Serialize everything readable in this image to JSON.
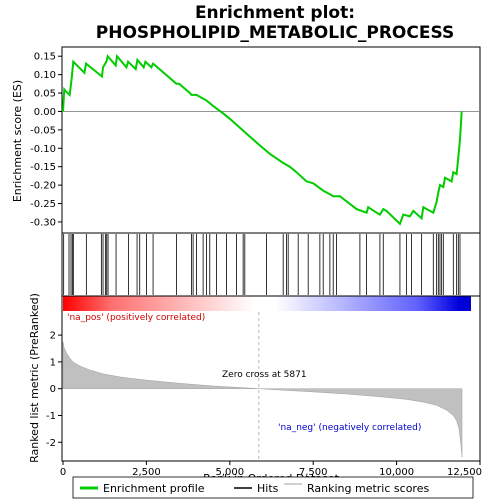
{
  "chart_data": {
    "type": "line",
    "title_line1": "Enrichment plot:",
    "title_line2": "PHOSPHOLIPID_METABOLIC_PROCESS",
    "top_panel": {
      "ylabel": "Enrichment score (ES)",
      "ylim": [
        -0.33,
        0.175
      ],
      "yticks": [
        0.15,
        0.1,
        0.05,
        0.0,
        -0.05,
        -0.1,
        -0.15,
        -0.2,
        -0.25,
        -0.3
      ],
      "ytick_labels": [
        "0.15",
        "0.10",
        "0.05",
        "0.00",
        "-0.05",
        "-0.10",
        "-0.15",
        "-0.20",
        "-0.25",
        "-0.30"
      ],
      "series": [
        {
          "name": "Enrichment profile",
          "color": "#00cc00",
          "x": [
            0,
            40,
            80,
            200,
            260,
            310,
            640,
            690,
            1170,
            1200,
            1300,
            1340,
            1580,
            1620,
            1900,
            1950,
            2180,
            2230,
            2420,
            2470,
            2650,
            2700,
            3400,
            3480,
            3800,
            3850,
            4000,
            4200,
            4300,
            4500,
            4800,
            5000,
            5500,
            5871,
            6200,
            6600,
            6800,
            7000,
            7300,
            7500,
            7800,
            8000,
            8100,
            8300,
            8800,
            9100,
            9150,
            9400,
            9500,
            9600,
            9700,
            10100,
            10200,
            10400,
            10500,
            10750,
            10800,
            11100,
            11150,
            11200,
            11250,
            11300,
            11400,
            11450,
            11650,
            11700,
            11800,
            11850,
            11900,
            11950
          ],
          "y": [
            0.0,
            0.06,
            0.055,
            0.045,
            0.09,
            0.135,
            0.105,
            0.13,
            0.095,
            0.12,
            0.135,
            0.15,
            0.125,
            0.15,
            0.12,
            0.135,
            0.115,
            0.14,
            0.12,
            0.135,
            0.12,
            0.13,
            0.075,
            0.075,
            0.05,
            0.045,
            0.045,
            0.035,
            0.03,
            0.015,
            -0.005,
            -0.02,
            -0.06,
            -0.09,
            -0.115,
            -0.14,
            -0.15,
            -0.165,
            -0.19,
            -0.195,
            -0.215,
            -0.225,
            -0.23,
            -0.23,
            -0.265,
            -0.275,
            -0.26,
            -0.275,
            -0.28,
            -0.265,
            -0.27,
            -0.305,
            -0.28,
            -0.285,
            -0.27,
            -0.29,
            -0.26,
            -0.275,
            -0.26,
            -0.245,
            -0.22,
            -0.2,
            -0.205,
            -0.18,
            -0.19,
            -0.165,
            -0.17,
            -0.125,
            -0.075,
            0.0
          ]
        }
      ]
    },
    "hits_x": [
      20,
      180,
      240,
      280,
      310,
      700,
      1150,
      1200,
      1270,
      1310,
      1350,
      1590,
      1960,
      2220,
      2300,
      2500,
      2700,
      3400,
      3850,
      3900,
      4000,
      4200,
      4300,
      4400,
      4600,
      4900,
      5200,
      5400,
      5450,
      6100,
      6600,
      6700,
      6750,
      7050,
      7350,
      7700,
      7800,
      8000,
      8100,
      8200,
      8900,
      9100,
      9500,
      9600,
      10100,
      10300,
      10450,
      10750,
      11100,
      11200,
      11250,
      11300,
      11350,
      11400,
      11700,
      11800,
      11850,
      11900
    ],
    "bottom_panel": {
      "ylabel": "Ranked list metric (PreRanked)",
      "ylim": [
        -2.7,
        2.9
      ],
      "yticks": [
        2,
        1,
        0,
        -1,
        -2
      ],
      "ytick_labels": [
        "2",
        "1",
        "0",
        "-1",
        "-2"
      ],
      "metric_x": [
        0,
        30,
        100,
        200,
        300,
        500,
        800,
        1200,
        1800,
        2500,
        3500,
        4500,
        5500,
        5871,
        6500,
        7500,
        8500,
        9500,
        10300,
        10800,
        11200,
        11500,
        11700,
        11800,
        11870,
        11920,
        11960
      ],
      "metric_y": [
        1.75,
        1.55,
        1.35,
        1.15,
        1.0,
        0.85,
        0.7,
        0.55,
        0.42,
        0.32,
        0.2,
        0.1,
        0.03,
        0.0,
        -0.05,
        -0.12,
        -0.2,
        -0.3,
        -0.4,
        -0.5,
        -0.62,
        -0.8,
        -1.0,
        -1.2,
        -1.5,
        -2.0,
        -2.55
      ],
      "zero_cross_label": "Zero cross at 5871",
      "zero_cross_x": 5871,
      "pos_label": "'na_pos' (positively correlated)",
      "neg_label": "'na_neg' (negatively correlated)"
    },
    "x_axis": {
      "xlabel": "Rank in Ordered Dataset",
      "xlim": [
        0,
        12500
      ],
      "xticks": [
        0,
        2500,
        5000,
        7500,
        10000,
        12500
      ],
      "xtick_labels": [
        "0",
        "2,500",
        "5,000",
        "7,500",
        "10,000",
        "12,500"
      ],
      "n_genes": 11960
    },
    "legend": {
      "items": [
        {
          "label": "Enrichment profile",
          "color": "#00cc00"
        },
        {
          "label": "Hits",
          "color": "#000000"
        },
        {
          "label": "Ranking metric scores",
          "color": "#c0c0c0"
        }
      ]
    },
    "colors": {
      "profile": "#00cc00",
      "metric_fill": "#c0c0c0",
      "pos_label": "#cc0000",
      "neg_label": "#0000cc",
      "hit": "#000000"
    }
  }
}
